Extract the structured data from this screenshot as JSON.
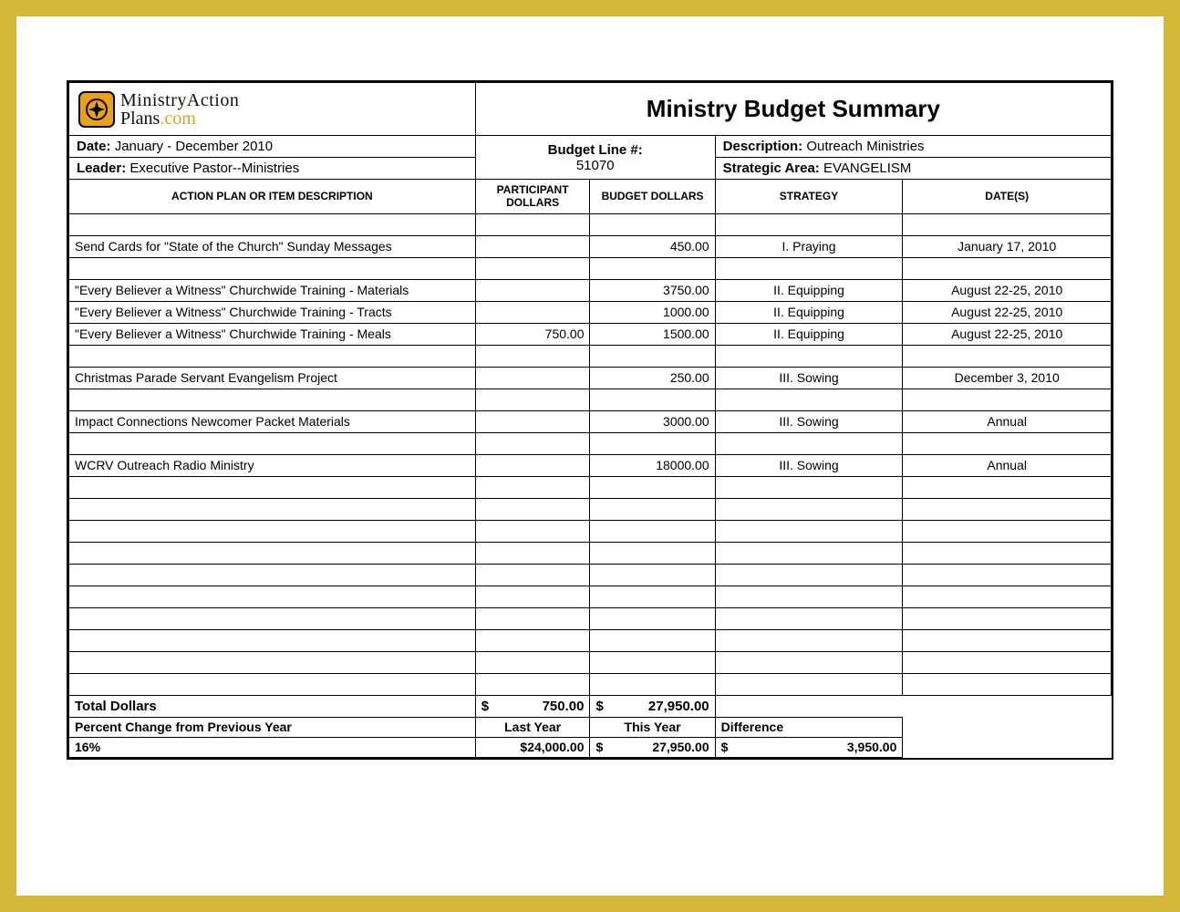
{
  "logo": {
    "line1": "MinistryAction",
    "line2a": "Plans",
    "line2b": ".com"
  },
  "title": "Ministry Budget Summary",
  "info": {
    "date_label": "Date:",
    "date_value": "January - December 2010",
    "leader_label": "Leader:",
    "leader_value": "Executive Pastor--Ministries",
    "budget_line_label": "Budget Line #:",
    "budget_line_value": "51070",
    "description_label": "Description:",
    "description_value": "Outreach Ministries",
    "strategic_area_label": "Strategic Area:",
    "strategic_area_value": "EVANGELISM"
  },
  "columns": {
    "description": "ACTION PLAN OR ITEM DESCRIPTION",
    "participant_dollars": "PARTICIPANT DOLLARS",
    "budget_dollars": "BUDGET DOLLARS",
    "strategy": "STRATEGY",
    "dates": "DATE(S)"
  },
  "rows": [
    {
      "desc": "",
      "pd": "",
      "bd": "",
      "strat": "",
      "date": ""
    },
    {
      "desc": "Send Cards for \"State of the Church\" Sunday Messages",
      "pd": "",
      "bd": "450.00",
      "strat": "I. Praying",
      "date": "January 17, 2010"
    },
    {
      "desc": "",
      "pd": "",
      "bd": "",
      "strat": "",
      "date": ""
    },
    {
      "desc": "\"Every Believer a Witness\" Churchwide Training - Materials",
      "pd": "",
      "bd": "3750.00",
      "strat": "II. Equipping",
      "date": "August 22-25, 2010"
    },
    {
      "desc": "\"Every Believer a Witness\" Churchwide Training - Tracts",
      "pd": "",
      "bd": "1000.00",
      "strat": "II. Equipping",
      "date": "August 22-25, 2010"
    },
    {
      "desc": "\"Every Believer a Witness\" Churchwide Training - Meals",
      "pd": "750.00",
      "bd": "1500.00",
      "strat": "II. Equipping",
      "date": "August 22-25, 2010"
    },
    {
      "desc": "",
      "pd": "",
      "bd": "",
      "strat": "",
      "date": ""
    },
    {
      "desc": "Christmas Parade Servant Evangelism Project",
      "pd": "",
      "bd": "250.00",
      "strat": "III. Sowing",
      "date": "December 3, 2010"
    },
    {
      "desc": "",
      "pd": "",
      "bd": "",
      "strat": "",
      "date": ""
    },
    {
      "desc": "Impact Connections Newcomer Packet Materials",
      "pd": "",
      "bd": "3000.00",
      "strat": "III. Sowing",
      "date": "Annual"
    },
    {
      "desc": "",
      "pd": "",
      "bd": "",
      "strat": "",
      "date": ""
    },
    {
      "desc": "WCRV Outreach Radio Ministry",
      "pd": "",
      "bd": "18000.00",
      "strat": "III. Sowing",
      "date": "Annual"
    },
    {
      "desc": "",
      "pd": "",
      "bd": "",
      "strat": "",
      "date": ""
    },
    {
      "desc": "",
      "pd": "",
      "bd": "",
      "strat": "",
      "date": ""
    },
    {
      "desc": "",
      "pd": "",
      "bd": "",
      "strat": "",
      "date": ""
    },
    {
      "desc": "",
      "pd": "",
      "bd": "",
      "strat": "",
      "date": ""
    },
    {
      "desc": "",
      "pd": "",
      "bd": "",
      "strat": "",
      "date": ""
    },
    {
      "desc": "",
      "pd": "",
      "bd": "",
      "strat": "",
      "date": ""
    },
    {
      "desc": "",
      "pd": "",
      "bd": "",
      "strat": "",
      "date": ""
    },
    {
      "desc": "",
      "pd": "",
      "bd": "",
      "strat": "",
      "date": ""
    },
    {
      "desc": "",
      "pd": "",
      "bd": "",
      "strat": "",
      "date": ""
    },
    {
      "desc": "",
      "pd": "",
      "bd": "",
      "strat": "",
      "date": ""
    }
  ],
  "totals": {
    "label": "Total Dollars",
    "pd_dollar": "$",
    "pd_value": "750.00",
    "bd_dollar": "$",
    "bd_value": "27,950.00"
  },
  "comparison": {
    "pct_label": "Percent Change from Previous Year",
    "pct_value": "16%",
    "last_year_label": "Last Year",
    "last_year_value": "$24,000.00",
    "this_year_label": "This Year",
    "this_year_dollar": "$",
    "this_year_value": "27,950.00",
    "difference_label": "Difference",
    "difference_dollar": "$",
    "difference_value": "3,950.00"
  },
  "style": {
    "border_color": "#d4b838",
    "accent_color": "#e8a01d",
    "text_color": "#000000",
    "background": "#ffffff"
  }
}
